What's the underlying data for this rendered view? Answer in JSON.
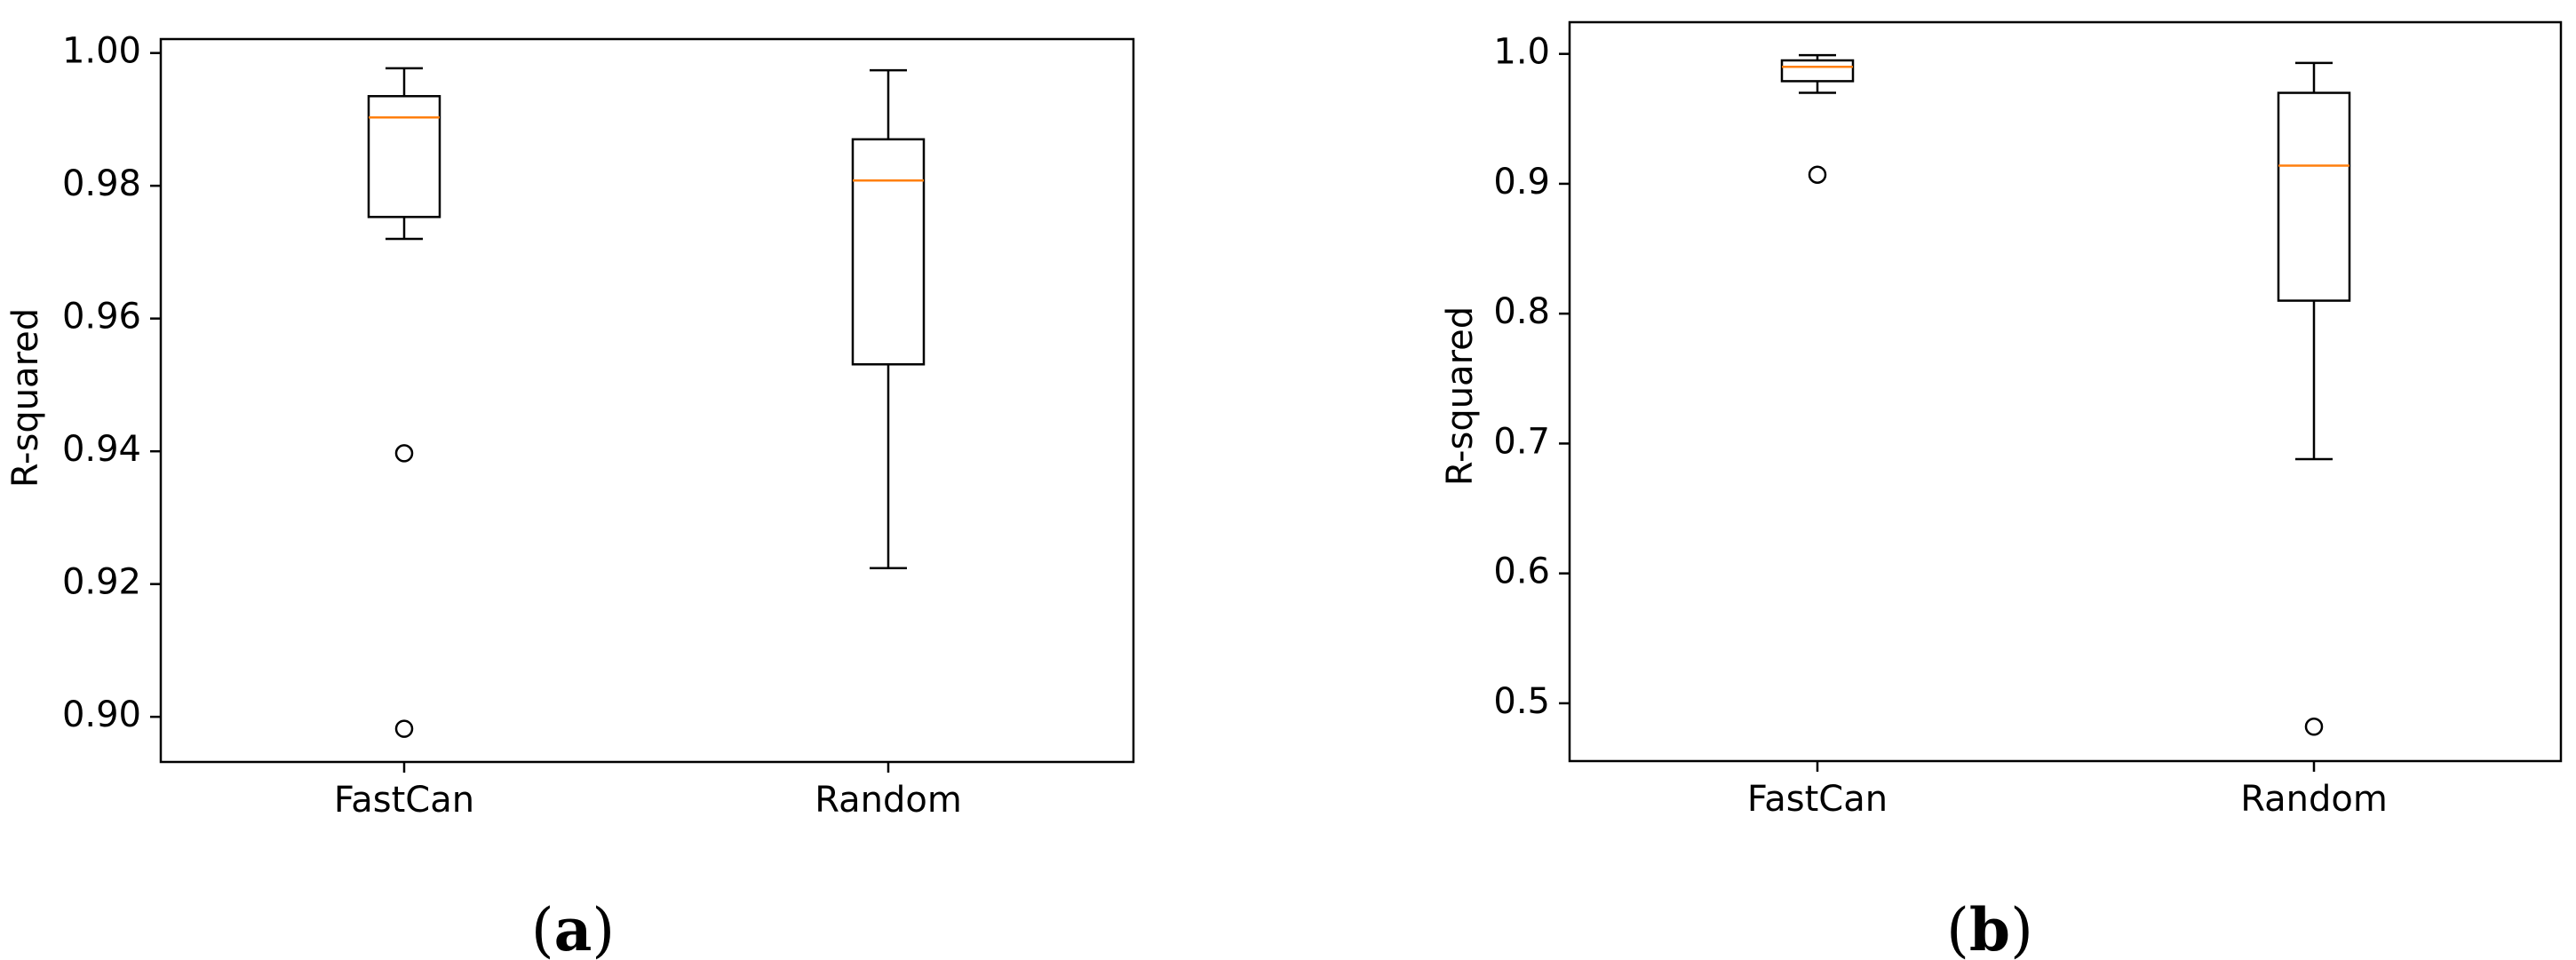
{
  "chart_data": [
    {
      "type": "box",
      "panel_label": {
        "open": "(",
        "letter": "a",
        "close": ")"
      },
      "title": "",
      "xlabel": "",
      "ylabel": "R-squared",
      "ylim": [
        0.8932,
        1.0021
      ],
      "yticks": [
        "0.90",
        "0.92",
        "0.94",
        "0.96",
        "0.98",
        "1.00"
      ],
      "ytick_values": [
        0.9,
        0.92,
        0.94,
        0.96,
        0.98,
        1.0
      ],
      "categories": [
        "FastCan",
        "Random"
      ],
      "boxes": [
        {
          "name": "FastCan",
          "whislo": 0.972,
          "q1": 0.9753,
          "med": 0.9903,
          "q3": 0.9935,
          "whishi": 0.9977,
          "fliers": [
            0.9397,
            0.8982
          ]
        },
        {
          "name": "Random",
          "whislo": 0.9224,
          "q1": 0.9531,
          "med": 0.9808,
          "q3": 0.987,
          "whishi": 0.9974,
          "fliers": []
        }
      ],
      "colors": {
        "median": "#ff7f0e",
        "box": "#000000"
      },
      "grid": false
    },
    {
      "type": "box",
      "panel_label": {
        "open": "(",
        "letter": "b",
        "close": ")"
      },
      "title": "",
      "xlabel": "",
      "ylabel": "R-squared",
      "ylim": [
        0.4555,
        1.0244
      ],
      "yticks": [
        "0.5",
        "0.6",
        "0.7",
        "0.8",
        "0.9",
        "1.0"
      ],
      "ytick_values": [
        0.5,
        0.6,
        0.7,
        0.8,
        0.9,
        1.0
      ],
      "categories": [
        "FastCan",
        "Random"
      ],
      "boxes": [
        {
          "name": "FastCan",
          "whislo": 0.97,
          "q1": 0.979,
          "med": 0.99,
          "q3": 0.995,
          "whishi": 0.999,
          "fliers": [
            0.907
          ]
        },
        {
          "name": "Random",
          "whislo": 0.688,
          "q1": 0.81,
          "med": 0.914,
          "q3": 0.97,
          "whishi": 0.993,
          "fliers": [
            0.482
          ]
        }
      ],
      "colors": {
        "median": "#ff7f0e",
        "box": "#000000"
      },
      "grid": false
    }
  ]
}
